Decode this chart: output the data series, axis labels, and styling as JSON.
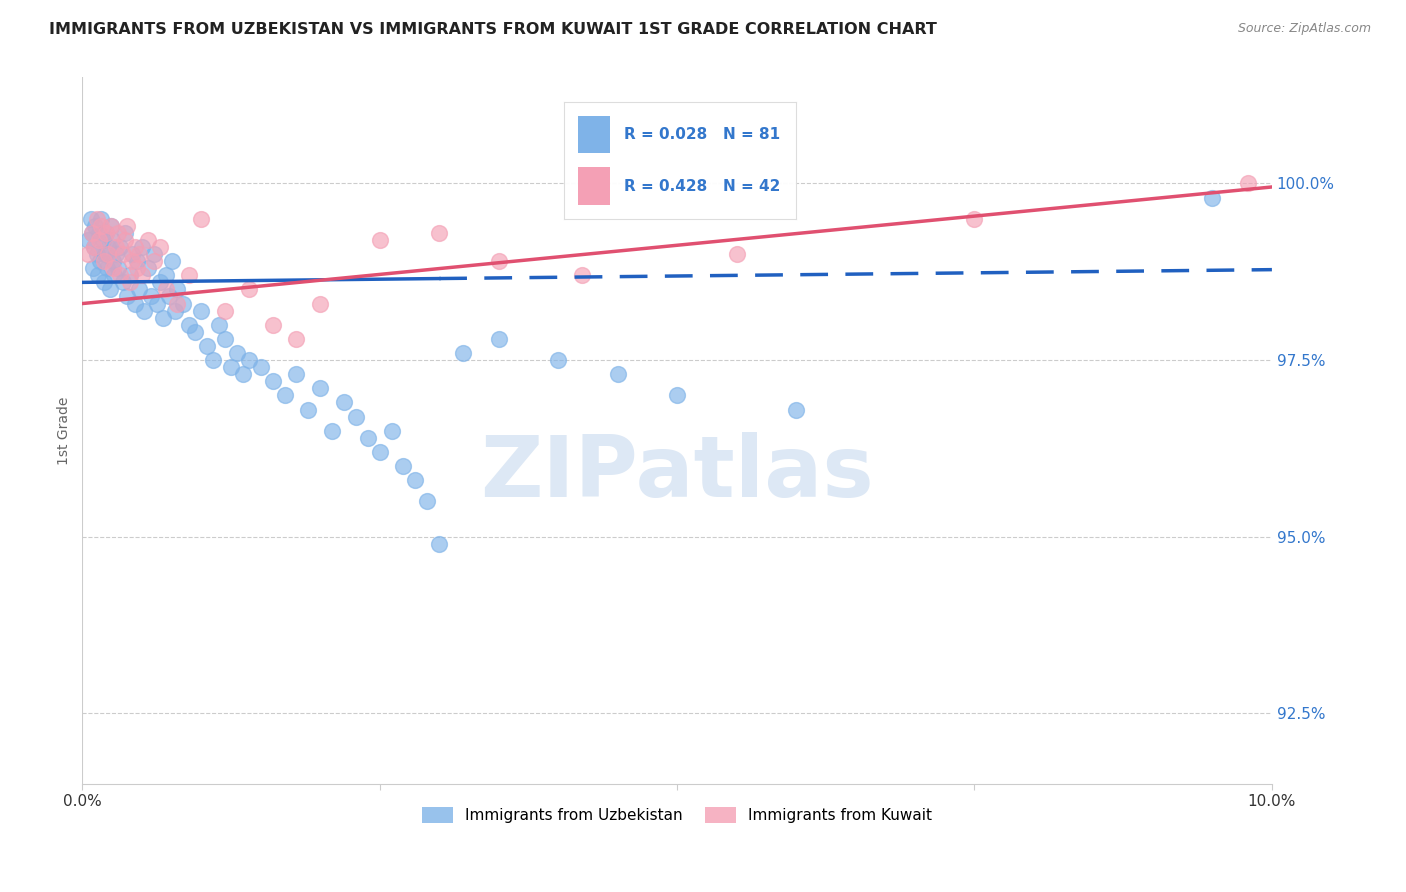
{
  "title": "IMMIGRANTS FROM UZBEKISTAN VS IMMIGRANTS FROM KUWAIT 1ST GRADE CORRELATION CHART",
  "source": "Source: ZipAtlas.com",
  "ylabel": "1st Grade",
  "xlim": [
    0.0,
    10.0
  ],
  "ylim": [
    91.5,
    101.5
  ],
  "yticks": [
    92.5,
    95.0,
    97.5,
    100.0
  ],
  "ytick_labels": [
    "92.5%",
    "95.0%",
    "97.5%",
    "100.0%"
  ],
  "r_uzbekistan": 0.028,
  "n_uzbekistan": 81,
  "r_kuwait": 0.428,
  "n_kuwait": 42,
  "color_uzbekistan": "#7fb3e8",
  "color_kuwait": "#f4a0b5",
  "trendline_uzbekistan_color": "#2060c0",
  "trendline_kuwait_color": "#e05070",
  "background_color": "#ffffff",
  "uzbekistan_x": [
    0.05,
    0.07,
    0.08,
    0.09,
    0.1,
    0.11,
    0.12,
    0.13,
    0.14,
    0.15,
    0.16,
    0.17,
    0.18,
    0.19,
    0.2,
    0.21,
    0.22,
    0.23,
    0.24,
    0.25,
    0.26,
    0.27,
    0.28,
    0.3,
    0.32,
    0.34,
    0.36,
    0.38,
    0.4,
    0.42,
    0.44,
    0.46,
    0.48,
    0.5,
    0.52,
    0.55,
    0.58,
    0.6,
    0.63,
    0.65,
    0.68,
    0.7,
    0.73,
    0.75,
    0.78,
    0.8,
    0.85,
    0.9,
    0.95,
    1.0,
    1.05,
    1.1,
    1.15,
    1.2,
    1.25,
    1.3,
    1.35,
    1.4,
    1.5,
    1.6,
    1.7,
    1.8,
    1.9,
    2.0,
    2.1,
    2.2,
    2.3,
    2.4,
    2.5,
    2.6,
    2.7,
    2.8,
    2.9,
    3.0,
    3.2,
    3.5,
    4.0,
    4.5,
    5.0,
    6.0,
    9.5
  ],
  "uzbekistan_y": [
    99.2,
    99.5,
    99.3,
    98.8,
    99.1,
    99.4,
    99.0,
    98.7,
    99.3,
    98.9,
    99.5,
    99.2,
    98.6,
    99.0,
    99.3,
    98.8,
    99.1,
    98.5,
    99.4,
    99.2,
    98.9,
    98.7,
    99.0,
    98.8,
    99.1,
    98.6,
    99.3,
    98.4,
    98.7,
    99.0,
    98.3,
    98.9,
    98.5,
    99.1,
    98.2,
    98.8,
    98.4,
    99.0,
    98.3,
    98.6,
    98.1,
    98.7,
    98.4,
    98.9,
    98.2,
    98.5,
    98.3,
    98.0,
    97.9,
    98.2,
    97.7,
    97.5,
    98.0,
    97.8,
    97.4,
    97.6,
    97.3,
    97.5,
    97.4,
    97.2,
    97.0,
    97.3,
    96.8,
    97.1,
    96.5,
    96.9,
    96.7,
    96.4,
    96.2,
    96.5,
    96.0,
    95.8,
    95.5,
    94.9,
    97.6,
    97.8,
    97.5,
    97.3,
    97.0,
    96.8,
    99.8
  ],
  "kuwait_x": [
    0.05,
    0.08,
    0.1,
    0.12,
    0.14,
    0.16,
    0.18,
    0.2,
    0.22,
    0.24,
    0.26,
    0.28,
    0.3,
    0.32,
    0.34,
    0.36,
    0.38,
    0.4,
    0.42,
    0.44,
    0.46,
    0.48,
    0.5,
    0.55,
    0.6,
    0.65,
    0.7,
    0.8,
    0.9,
    1.0,
    1.2,
    1.4,
    1.6,
    1.8,
    2.0,
    2.5,
    3.0,
    3.5,
    4.2,
    5.5,
    7.5,
    9.8
  ],
  "kuwait_y": [
    99.0,
    99.3,
    99.1,
    99.5,
    99.2,
    99.4,
    98.9,
    99.3,
    99.0,
    99.4,
    98.8,
    99.1,
    99.3,
    98.7,
    99.0,
    99.2,
    99.4,
    98.6,
    98.9,
    99.1,
    98.8,
    99.0,
    98.7,
    99.2,
    98.9,
    99.1,
    98.5,
    98.3,
    98.7,
    99.5,
    98.2,
    98.5,
    98.0,
    97.8,
    98.3,
    99.2,
    99.3,
    98.9,
    98.7,
    99.0,
    99.5,
    100.0
  ]
}
